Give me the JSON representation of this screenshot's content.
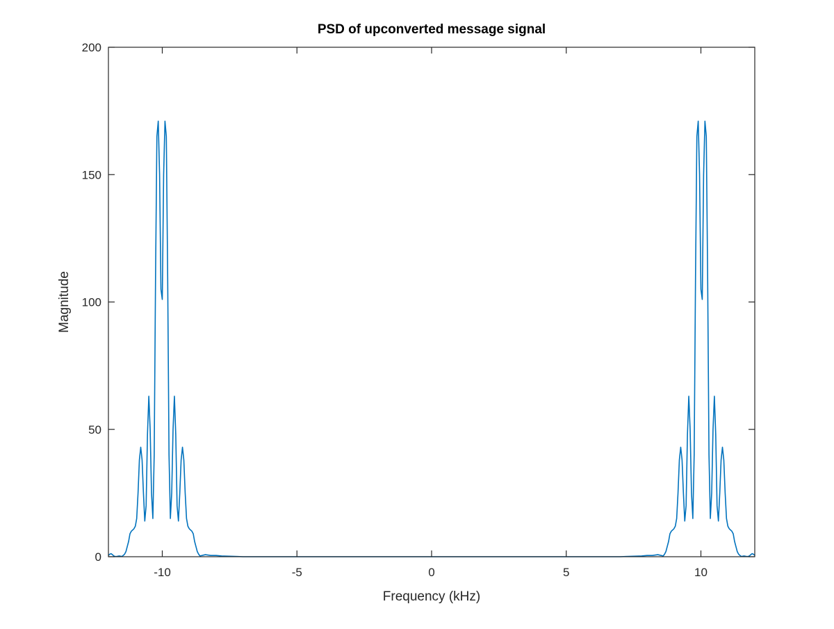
{
  "chart_data": {
    "type": "line",
    "title": "PSD of upconverted message signal",
    "xlabel": "Frequency (kHz)",
    "ylabel": "Magnitude",
    "xlim": [
      -12,
      12
    ],
    "ylim": [
      0,
      200
    ],
    "grid": false,
    "legend": "none",
    "xticks": [
      -10,
      -5,
      0,
      5,
      10
    ],
    "yticks": [
      0,
      50,
      100,
      150,
      200
    ],
    "colors": {
      "series": "#0072BD",
      "axes": "#262626",
      "background": "#ffffff"
    },
    "series": [
      {
        "x": [
          -12,
          -11.95,
          -11.9,
          -11.85,
          -11.8,
          -11.75,
          -11.7,
          -11.65,
          -11.6,
          -11.55,
          -11.5,
          -11.45,
          -11.4,
          -11.35,
          -11.3,
          -11.25,
          -11.2,
          -11.15,
          -11.1,
          -11.05,
          -11,
          -10.95,
          -10.9,
          -10.85,
          -10.8,
          -10.75,
          -10.7,
          -10.65,
          -10.6,
          -10.55,
          -10.5,
          -10.45,
          -10.4,
          -10.35,
          -10.3,
          -10.25,
          -10.2,
          -10.15,
          -10.1,
          -10.05,
          -10,
          -9.95,
          -9.9,
          -9.85,
          -9.8,
          -9.75,
          -9.7,
          -9.65,
          -9.6,
          -9.55,
          -9.5,
          -9.45,
          -9.4,
          -9.35,
          -9.3,
          -9.25,
          -9.2,
          -9.15,
          -9.1,
          -9.05,
          -9,
          -8.95,
          -8.9,
          -8.85,
          -8.8,
          -8.75,
          -8.7,
          -8.65,
          -8.6,
          -8.4,
          -8.2,
          -8,
          -7.8,
          -7.5,
          -7.2,
          -7,
          7,
          7.2,
          7.5,
          7.8,
          8,
          8.2,
          8.4,
          8.6,
          8.65,
          8.7,
          8.75,
          8.8,
          8.85,
          8.9,
          8.95,
          9,
          9.05,
          9.1,
          9.15,
          9.2,
          9.25,
          9.3,
          9.35,
          9.4,
          9.45,
          9.5,
          9.55,
          9.6,
          9.65,
          9.7,
          9.75,
          9.8,
          9.85,
          9.9,
          9.95,
          10,
          10.05,
          10.1,
          10.15,
          10.2,
          10.25,
          10.3,
          10.35,
          10.4,
          10.45,
          10.5,
          10.55,
          10.6,
          10.65,
          10.7,
          10.75,
          10.8,
          10.85,
          10.9,
          10.95,
          11,
          11.05,
          11.1,
          11.15,
          11.2,
          11.25,
          11.3,
          11.35,
          11.4,
          11.45,
          11.5,
          11.55,
          11.6,
          11.65,
          11.7,
          11.75,
          11.8,
          11.85,
          11.9,
          11.95,
          12
        ],
        "y": [
          0.5,
          1,
          1.2,
          0.8,
          0.3,
          0.1,
          0.1,
          0.2,
          0.3,
          0.2,
          0.1,
          0.5,
          1,
          2,
          4,
          6,
          9,
          10,
          10.5,
          11,
          12,
          15,
          25,
          38,
          43,
          38,
          25,
          14,
          20,
          48,
          63,
          50,
          25,
          15,
          40,
          110,
          165,
          171,
          150,
          105,
          101,
          150,
          171,
          165,
          110,
          40,
          15,
          25,
          50,
          63,
          48,
          20,
          14,
          25,
          38,
          43,
          38,
          25,
          15,
          12,
          11,
          10.5,
          10,
          9,
          6,
          4,
          2,
          1,
          0.3,
          0.8,
          0.5,
          0.5,
          0.3,
          0.2,
          0.1,
          0,
          0,
          0.1,
          0.2,
          0.3,
          0.5,
          0.5,
          0.8,
          0.3,
          1,
          2,
          4,
          6,
          9,
          10,
          10.5,
          11,
          12,
          15,
          25,
          38,
          43,
          38,
          25,
          14,
          20,
          48,
          63,
          50,
          25,
          15,
          40,
          110,
          165,
          171,
          150,
          105,
          101,
          150,
          171,
          165,
          110,
          40,
          15,
          25,
          50,
          63,
          48,
          20,
          14,
          25,
          38,
          43,
          38,
          25,
          15,
          12,
          11,
          10.5,
          10,
          9,
          6,
          4,
          2,
          1,
          0.5,
          0.1,
          0.2,
          0.3,
          0.2,
          0.1,
          0.1,
          0.3,
          0.8,
          1.2,
          1,
          0.5
        ]
      }
    ]
  }
}
